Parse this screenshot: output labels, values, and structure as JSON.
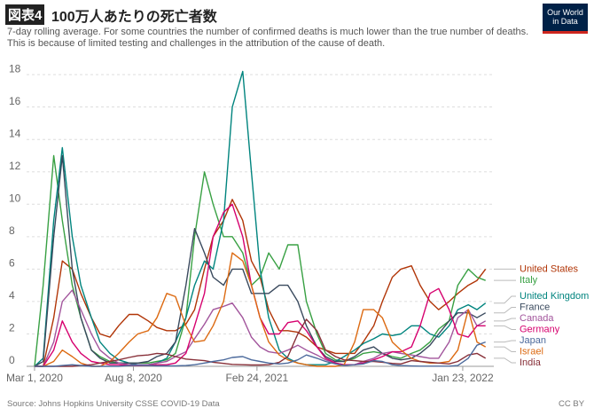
{
  "chart_data": {
    "type": "line",
    "figure_label": "図表4",
    "title": "100万人あたりの死亡者数",
    "subtitle": "7-day rolling average. For some countries the number of confirmed deaths is much lower than the true number of deaths. This is because of limited testing and challenges in the attribution of the cause of death.",
    "logo": [
      "Our World",
      "in Data"
    ],
    "source": "Source: Johns Hopkins University CSSE COVID-19 Data",
    "license": "CC BY",
    "xlim": [
      "2020-02-20",
      "2022-03-10"
    ],
    "xticks": [
      {
        "value": "2020-03-01",
        "label": "Mar 1, 2020"
      },
      {
        "value": "2020-08-08",
        "label": "Aug 8, 2020"
      },
      {
        "value": "2021-02-24",
        "label": "Feb 24, 2021"
      },
      {
        "value": "2022-01-23",
        "label": "Jan 23, 2022"
      }
    ],
    "ylim": [
      0,
      18.5
    ],
    "yticks": [
      0,
      2,
      4,
      6,
      8,
      10,
      12,
      14,
      16,
      18
    ],
    "grid": true,
    "x": [
      "2020-03-01",
      "2020-03-15",
      "2020-04-01",
      "2020-04-15",
      "2020-05-01",
      "2020-05-15",
      "2020-06-01",
      "2020-06-15",
      "2020-07-01",
      "2020-07-15",
      "2020-08-01",
      "2020-08-15",
      "2020-09-01",
      "2020-09-15",
      "2020-10-01",
      "2020-10-15",
      "2020-11-01",
      "2020-11-15",
      "2020-12-01",
      "2020-12-15",
      "2021-01-01",
      "2021-01-15",
      "2021-02-01",
      "2021-02-15",
      "2021-03-01",
      "2021-03-15",
      "2021-04-01",
      "2021-04-15",
      "2021-05-01",
      "2021-05-15",
      "2021-06-01",
      "2021-06-15",
      "2021-07-01",
      "2021-07-15",
      "2021-08-01",
      "2021-08-15",
      "2021-09-01",
      "2021-09-15",
      "2021-10-01",
      "2021-10-15",
      "2021-11-01",
      "2021-11-15",
      "2021-12-01",
      "2021-12-15",
      "2022-01-01",
      "2022-01-15",
      "2022-02-01",
      "2022-02-15",
      "2022-03-01"
    ],
    "series": [
      {
        "name": "United States",
        "color": "#b13507",
        "values": [
          0,
          0,
          3,
          6.5,
          6,
          4.5,
          3,
          2,
          1.8,
          2.5,
          3.2,
          3.2,
          2.8,
          2.4,
          2.2,
          2.2,
          2.6,
          3.5,
          6,
          8,
          9,
          10.3,
          9,
          6.5,
          5.5,
          3.5,
          2.2,
          2.2,
          2.1,
          1.8,
          1.2,
          1,
          0.8,
          0.8,
          0.8,
          1.5,
          2.5,
          4,
          5.5,
          6,
          6.2,
          5,
          4,
          3.5,
          4,
          4.5,
          5,
          5.3,
          6
        ]
      },
      {
        "name": "Italy",
        "color": "#38a043",
        "values": [
          0,
          5,
          13,
          9,
          5,
          3,
          1,
          0.6,
          0.3,
          0.2,
          0.2,
          0.2,
          0.2,
          0.3,
          0.4,
          0.8,
          3,
          8,
          12,
          10,
          8,
          8,
          7,
          5,
          5.5,
          7,
          6,
          7.5,
          7.5,
          4,
          2,
          0.8,
          0.4,
          0.3,
          0.5,
          0.8,
          0.9,
          0.8,
          0.6,
          0.5,
          0.8,
          1,
          1.5,
          2.3,
          2.8,
          5,
          6,
          5.5,
          5.3
        ]
      },
      {
        "name": "United Kingdom",
        "color": "#00847e",
        "values": [
          0,
          0.5,
          9,
          13.5,
          8,
          5,
          3,
          1.5,
          0.8,
          0.4,
          0.2,
          0.1,
          0.1,
          0.2,
          0.5,
          1.5,
          3,
          5,
          6.5,
          6,
          9,
          16,
          18.2,
          12,
          6,
          3,
          1,
          0.5,
          0.2,
          0.1,
          0.1,
          0.1,
          0.3,
          0.6,
          1,
          1.4,
          1.7,
          2,
          1.9,
          2,
          2.5,
          2.5,
          2,
          1.8,
          2.5,
          3.5,
          3.8,
          3.5,
          3.9
        ]
      },
      {
        "name": "France",
        "color": "#3a4a5e",
        "values": [
          0,
          0.3,
          8,
          13,
          6,
          3,
          1,
          0.5,
          0.2,
          0.2,
          0.2,
          0.2,
          0.3,
          0.6,
          0.8,
          1.5,
          5,
          8.5,
          7,
          5.5,
          5,
          6,
          6,
          4.5,
          4.5,
          4.5,
          5,
          5,
          4,
          2.5,
          1.2,
          0.6,
          0.3,
          0.3,
          0.6,
          1,
          1.2,
          0.8,
          0.5,
          0.4,
          0.5,
          0.8,
          1.3,
          2,
          2.8,
          3.3,
          3.3,
          3,
          3.3
        ]
      },
      {
        "name": "Canada",
        "color": "#a2559c",
        "values": [
          0,
          0,
          1.5,
          4,
          4.7,
          3.5,
          2,
          1,
          0.5,
          0.2,
          0.1,
          0.1,
          0.1,
          0.2,
          0.3,
          0.6,
          0.9,
          1.7,
          2.6,
          3.5,
          3.7,
          3.9,
          3,
          1.8,
          1.2,
          0.9,
          0.8,
          1,
          1.3,
          1,
          0.7,
          0.4,
          0.2,
          0.1,
          0.1,
          0.3,
          0.5,
          0.8,
          0.9,
          0.8,
          0.7,
          0.6,
          0.5,
          0.5,
          1.5,
          3,
          3.5,
          2.5,
          2.8
        ]
      },
      {
        "name": "Germany",
        "color": "#d6006e",
        "values": [
          0,
          0,
          1,
          2.8,
          1.5,
          0.8,
          0.3,
          0.2,
          0.1,
          0.1,
          0.05,
          0.05,
          0.05,
          0.1,
          0.1,
          0.2,
          0.8,
          2.5,
          4.5,
          8,
          9.5,
          10,
          8,
          5,
          3,
          2,
          2,
          2.7,
          2.8,
          2.2,
          1.2,
          0.5,
          0.2,
          0.1,
          0.1,
          0.2,
          0.4,
          0.6,
          0.9,
          0.9,
          1.2,
          2.5,
          4.5,
          4.8,
          3.5,
          2,
          1.8,
          2.5,
          2.5
        ]
      },
      {
        "name": "Israel",
        "color": "#dc6a12",
        "values": [
          0,
          0,
          0.3,
          1,
          0.6,
          0.2,
          0,
          0,
          0.3,
          0.8,
          1.5,
          2,
          2.2,
          3,
          4.5,
          4.3,
          2.5,
          1.5,
          1.6,
          2.5,
          4,
          7,
          6.5,
          5,
          3,
          1.5,
          0.7,
          0.4,
          0.2,
          0.1,
          0,
          0,
          0,
          0.1,
          1.5,
          3.5,
          3.5,
          3,
          1.5,
          1,
          0.5,
          0.3,
          0.2,
          0.2,
          0.3,
          1,
          3.5,
          1.5,
          1.2
        ]
      },
      {
        "name": "India",
        "color": "#883039",
        "values": [
          0,
          0,
          0,
          0,
          0,
          0.05,
          0.1,
          0.2,
          0.3,
          0.4,
          0.55,
          0.65,
          0.7,
          0.8,
          0.75,
          0.6,
          0.45,
          0.4,
          0.35,
          0.25,
          0.18,
          0.12,
          0.1,
          0.08,
          0.08,
          0.1,
          0.25,
          0.6,
          2,
          2.9,
          2.2,
          1,
          0.6,
          0.4,
          0.35,
          0.3,
          0.3,
          0.25,
          0.18,
          0.15,
          0.35,
          0.3,
          0.25,
          0.2,
          0.15,
          0.3,
          0.7,
          0.8,
          0.5
        ]
      },
      {
        "name": "Japan",
        "color": "#4c6a9c",
        "values": [
          0,
          0,
          0,
          0.05,
          0.1,
          0.05,
          0,
          0,
          0,
          0,
          0.05,
          0.08,
          0.05,
          0.03,
          0.03,
          0.03,
          0.05,
          0.1,
          0.2,
          0.3,
          0.4,
          0.55,
          0.6,
          0.4,
          0.3,
          0.2,
          0.15,
          0.2,
          0.4,
          0.7,
          0.5,
          0.3,
          0.15,
          0.05,
          0.1,
          0.15,
          0.35,
          0.3,
          0.1,
          0.05,
          0.02,
          0.01,
          0.01,
          0.01,
          0.01,
          0.05,
          0.5,
          1.3,
          1.5
        ]
      }
    ]
  }
}
